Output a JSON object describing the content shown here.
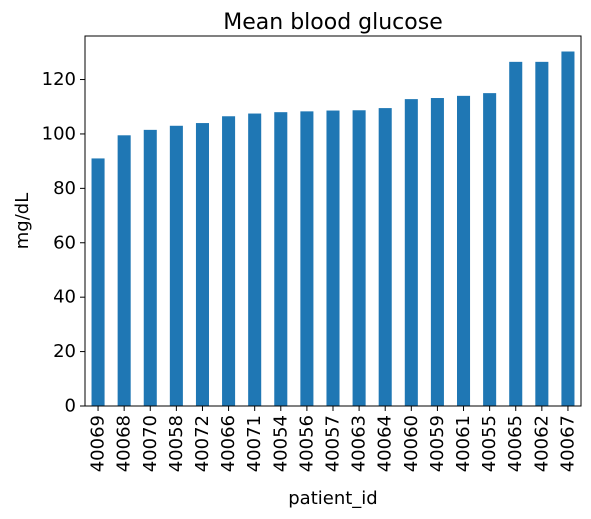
{
  "chart_data": {
    "type": "bar",
    "title": "Mean blood glucose",
    "xlabel": "patient_id",
    "ylabel": "mg/dL",
    "categories": [
      "40069",
      "40068",
      "40070",
      "40058",
      "40072",
      "40066",
      "40071",
      "40054",
      "40056",
      "40057",
      "40063",
      "40064",
      "40060",
      "40059",
      "40061",
      "40055",
      "40065",
      "40062",
      "40067"
    ],
    "values": [
      91,
      99.5,
      101.5,
      103,
      104,
      106.5,
      107.5,
      108,
      108.3,
      108.6,
      108.7,
      109.5,
      112.8,
      113.2,
      114,
      115,
      126.5,
      126.5,
      130.3
    ],
    "ylim": [
      0,
      136
    ],
    "yticks": [
      0,
      20,
      40,
      60,
      80,
      100,
      120
    ],
    "bar_color": "#1f77b4",
    "grid": false,
    "legend": false
  }
}
